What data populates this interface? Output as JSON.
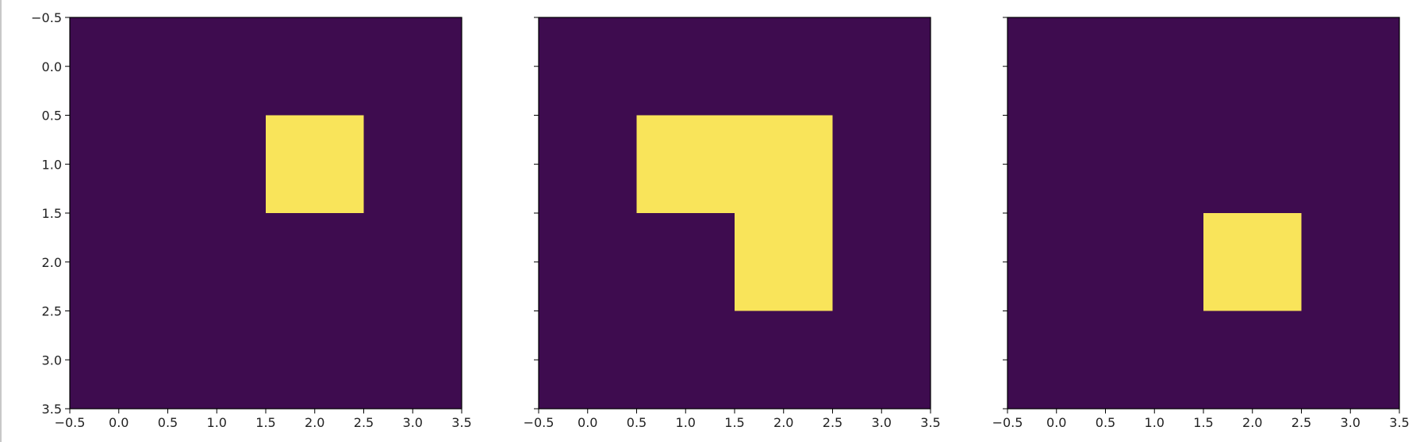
{
  "chart_data": [
    {
      "type": "heatmap",
      "xlim": [
        -0.5,
        3.5
      ],
      "ylim": [
        3.5,
        -0.5
      ],
      "x_ticks": [
        "−0.5",
        "0.0",
        "0.5",
        "1.0",
        "1.5",
        "2.0",
        "2.5",
        "3.0",
        "3.5"
      ],
      "y_ticks": [
        "−0.5",
        "0.0",
        "0.5",
        "1.0",
        "1.5",
        "2.0",
        "2.5",
        "3.0",
        "3.5"
      ],
      "show_y_tick_labels": true,
      "grid": [
        [
          0,
          0,
          0,
          0
        ],
        [
          0,
          0,
          1,
          0
        ],
        [
          0,
          0,
          0,
          0
        ],
        [
          0,
          0,
          0,
          0
        ]
      ]
    },
    {
      "type": "heatmap",
      "xlim": [
        -0.5,
        3.5
      ],
      "ylim": [
        3.5,
        -0.5
      ],
      "x_ticks": [
        "−0.5",
        "0.0",
        "0.5",
        "1.0",
        "1.5",
        "2.0",
        "2.5",
        "3.0",
        "3.5"
      ],
      "y_ticks": [
        "−0.5",
        "0.0",
        "0.5",
        "1.0",
        "1.5",
        "2.0",
        "2.5",
        "3.0",
        "3.5"
      ],
      "show_y_tick_labels": false,
      "grid": [
        [
          0,
          0,
          0,
          0
        ],
        [
          0,
          1,
          1,
          0
        ],
        [
          0,
          0,
          1,
          0
        ],
        [
          0,
          0,
          0,
          0
        ]
      ]
    },
    {
      "type": "heatmap",
      "xlim": [
        -0.5,
        3.5
      ],
      "ylim": [
        3.5,
        -0.5
      ],
      "x_ticks": [
        "−0.5",
        "0.0",
        "0.5",
        "1.0",
        "1.5",
        "2.0",
        "2.5",
        "3.0",
        "3.5"
      ],
      "y_ticks": [
        "−0.5",
        "0.0",
        "0.5",
        "1.0",
        "1.5",
        "2.0",
        "2.5",
        "3.0",
        "3.5"
      ],
      "show_y_tick_labels": false,
      "grid": [
        [
          0,
          0,
          0,
          0
        ],
        [
          0,
          0,
          0,
          0
        ],
        [
          0,
          0,
          1,
          0
        ],
        [
          0,
          0,
          0,
          0
        ]
      ]
    }
  ],
  "colors": {
    "low": "#3e0c4f",
    "high": "#f9e45a"
  }
}
